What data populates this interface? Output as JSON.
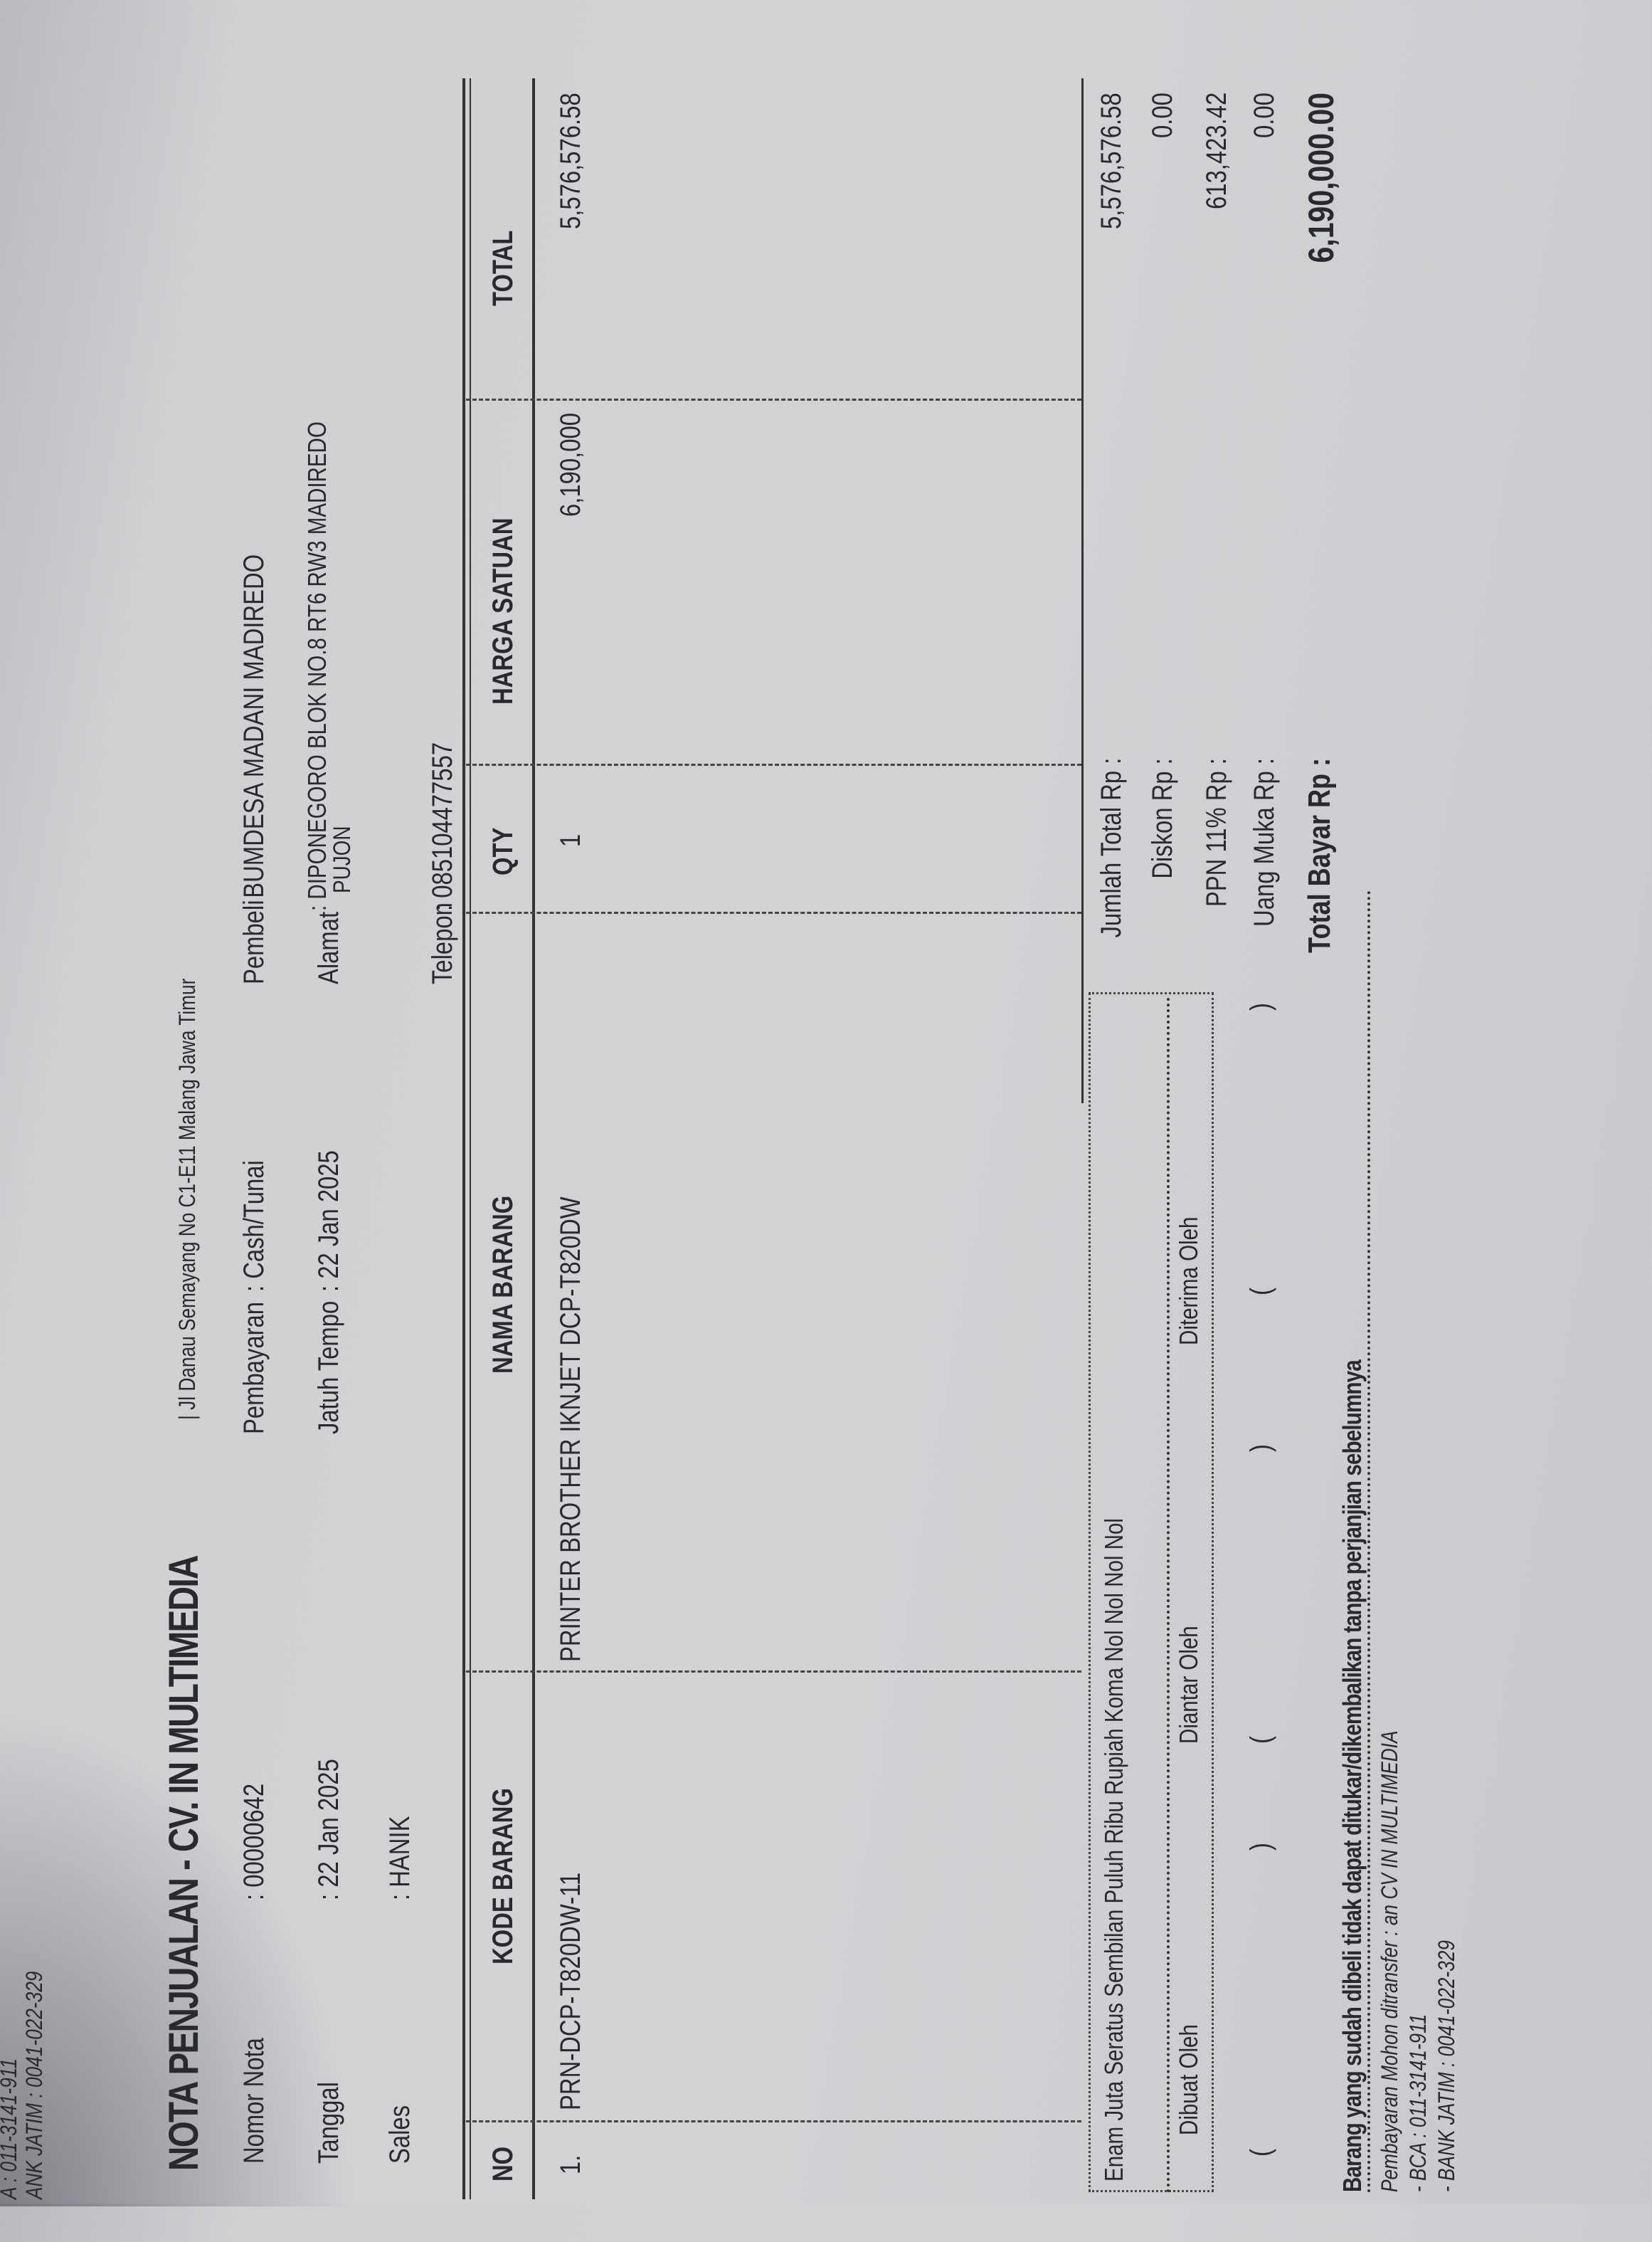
{
  "prev_receipt": {
    "bca": "A : 011-3141-911",
    "bank": "ANK JATIM : 0041-022-329"
  },
  "header": {
    "title": "NOTA PENJUALAN - CV. IN MULTIMEDIA",
    "address": "| Jl Danau Semayang No C1-E11 Malang Jawa Timur"
  },
  "info": {
    "nomor_nota_label": "Nomor Nota",
    "nomor_nota": ": 00000642",
    "tanggal_label": "Tanggal",
    "tanggal": ": 22 Jan 2025",
    "sales_label": "Sales",
    "sales": ": HANIK",
    "pembayaran_label": "Pembayaran",
    "pembayaran": ": Cash/Tunai",
    "jatuh_tempo_label": "Jatuh Tempo",
    "jatuh_tempo": ": 22 Jan 2025",
    "pembeli_label": "Pembeli",
    "pembeli": ": BUMDESA MADANI MADIREDO",
    "alamat_label": "Alamat",
    "alamat_1": ": DIPONEGORO BLOK NO.8 RT6 RW3 MADIREDO",
    "alamat_2": "PUJON",
    "telepon_label": "Telepon",
    "telepon": ": 085104477557"
  },
  "table": {
    "headers": [
      "NO",
      "KODE BARANG",
      "NAMA BARANG",
      "QTY",
      "HARGA SATUAN",
      "TOTAL"
    ],
    "rows": [
      [
        "1.",
        "PRN-DCP-T820DW-11",
        "PRINTER BROTHER IKNJET DCP-T820DW",
        "1",
        "6,190,000",
        "5,576,576.58"
      ]
    ]
  },
  "footer": {
    "terbilang": "Enam Juta Seratus Sembilan Puluh Ribu Rupiah Koma Nol Nol Nol Nol",
    "dibuat": "Dibuat Oleh",
    "diantar": "Diantar Oleh",
    "diterima": "Diterima Oleh",
    "paren_open": "(",
    "paren_close": ")",
    "note": "Barang yang sudah dibeli tidak dapat ditukar/dikembalikan tanpa perjanjian sebelumnya",
    "pay_1": "Pembayaran Mohon ditransfer : an CV IN MULTIMEDIA",
    "pay_2": "- BCA : 011-3141-911",
    "pay_3": "- BANK JATIM : 0041-022-329"
  },
  "totals": [
    {
      "label": "Jumlah Total Rp :",
      "value": "5,576,576.58"
    },
    {
      "label": "Diskon Rp :",
      "value": "0.00"
    },
    {
      "label": "PPN 11% Rp :",
      "value": "613,423.42"
    },
    {
      "label": "Uang Muka Rp :",
      "value": "0.00"
    },
    {
      "label": "Total Bayar Rp :",
      "value": "6,190,000.00"
    }
  ]
}
